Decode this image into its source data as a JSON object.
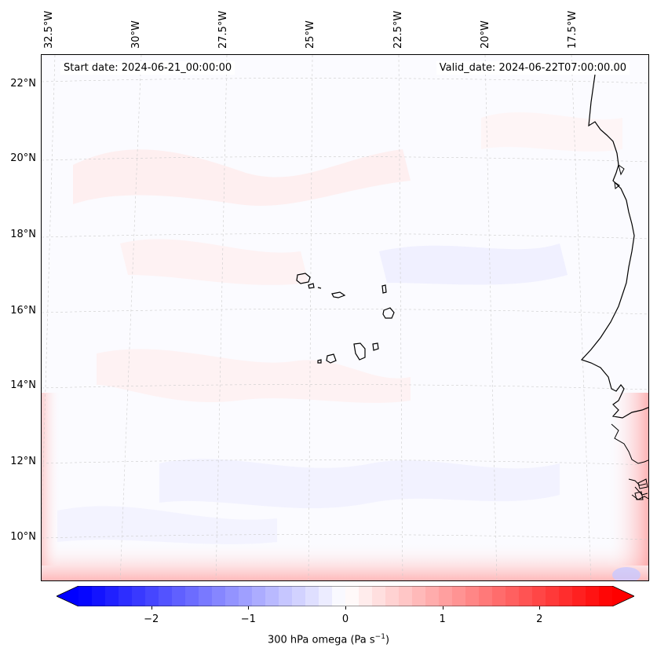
{
  "map": {
    "start_date": "Start date: 2024-06-21_00:00:00",
    "valid_date": "Valid_date: 2024-06-22T07:00:00.00",
    "lon_labels": [
      "32.5°W",
      "30°W",
      "27.5°W",
      "25°W",
      "22.5°W",
      "20°W",
      "17.5°W"
    ],
    "lat_labels": [
      "22°N",
      "20°N",
      "18°N",
      "16°N",
      "14°N",
      "12°N",
      "10°N"
    ],
    "field": "300 hPa omega",
    "features": [
      "Cape Verde islands",
      "West African coastline"
    ]
  },
  "colorbar": {
    "label_prefix": "300 hPa omega (Pa s",
    "label_exp": "−1",
    "label_suffix": ")",
    "ticks": [
      "−2",
      "−1",
      "0",
      "1",
      "2"
    ],
    "tick_values": [
      -2,
      -1,
      0,
      1,
      2
    ],
    "range": [
      -2.75,
      2.75
    ],
    "colormap": "bwr",
    "extend": "both",
    "colors": {
      "min": "#0000ff",
      "mid": "#ffffff",
      "max": "#ff0000"
    }
  }
}
